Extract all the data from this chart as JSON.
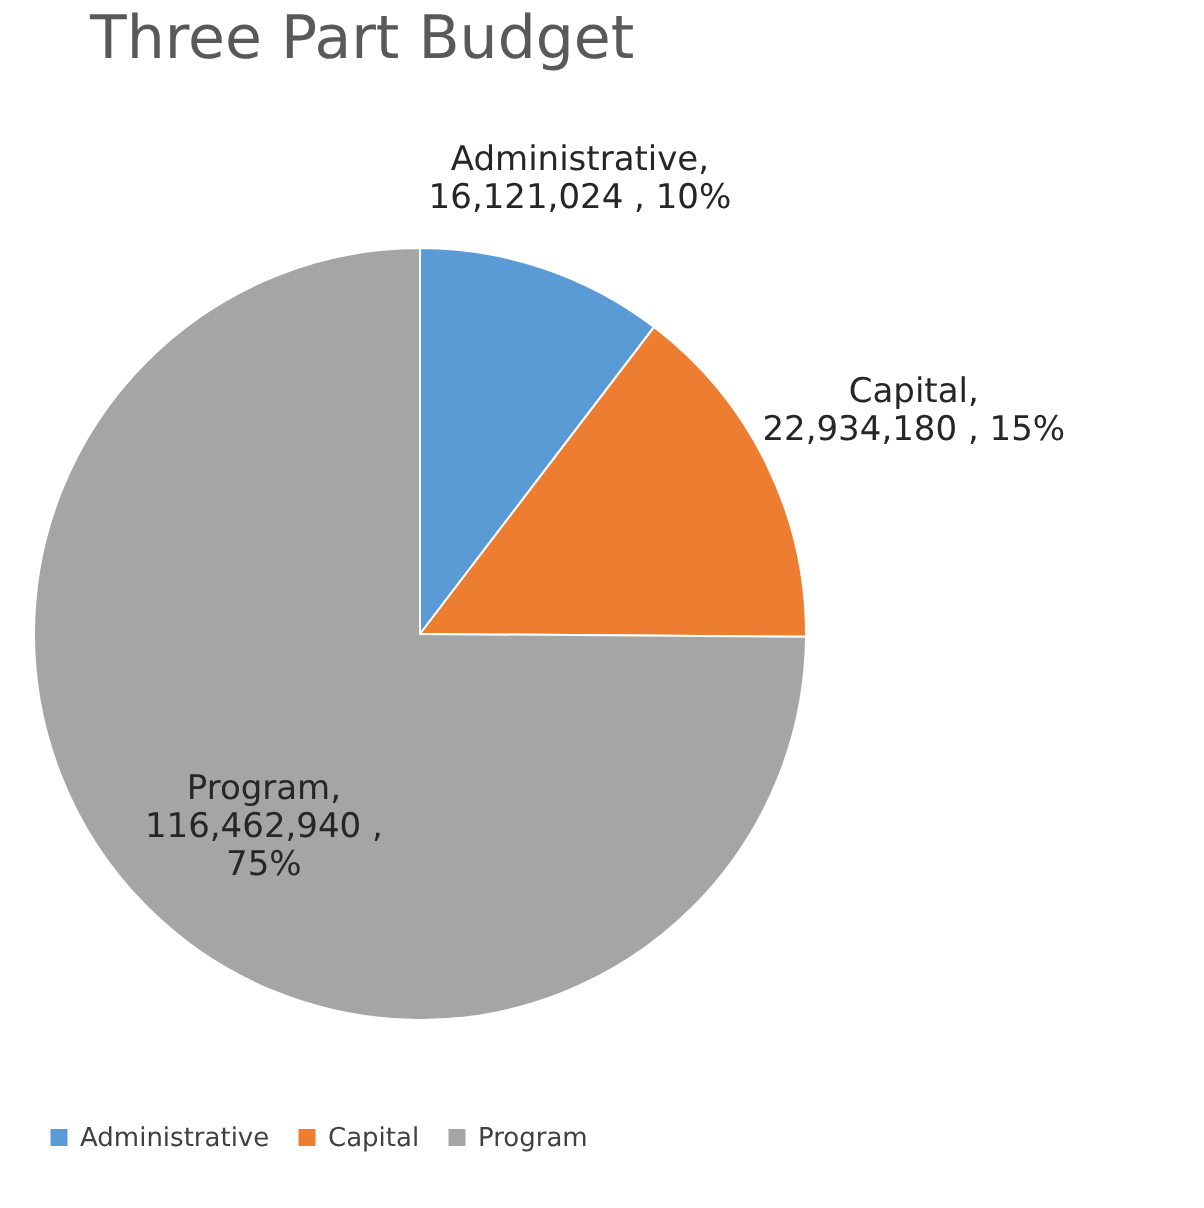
{
  "chart_data": {
    "type": "pie",
    "title": "Three Part Budget",
    "categories": [
      "Administrative",
      "Capital",
      "Program"
    ],
    "values": [
      16121024,
      22934180,
      116462940
    ],
    "colors": [
      "#5b9bd5",
      "#ed7d31",
      "#a5a5a5"
    ],
    "value_labels": [
      "Administrative,\n16,121,024 , 10%",
      "Capital,\n22,934,180 , 15%",
      "Program,\n116,462,940 ,\n75%"
    ],
    "legend": "bottom left"
  }
}
